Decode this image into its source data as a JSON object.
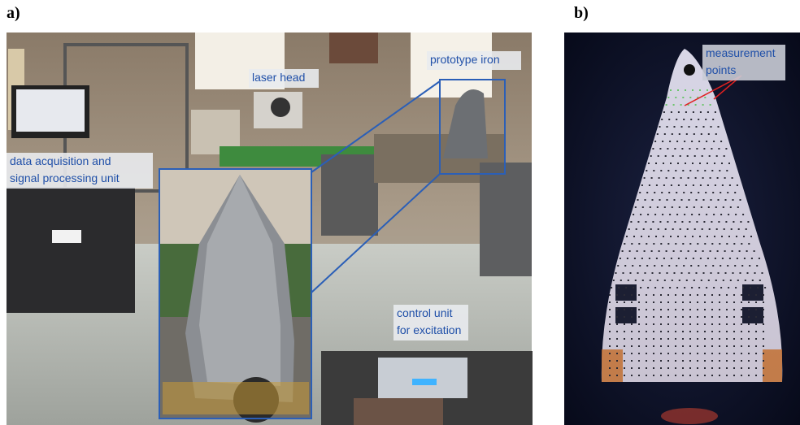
{
  "panels": [
    {
      "label": "a)",
      "annotations": [
        {
          "lines": [
            "laser head"
          ]
        },
        {
          "lines": [
            "prototype iron"
          ]
        },
        {
          "lines": [
            "data acquisition and",
            "signal processing unit"
          ]
        },
        {
          "lines": [
            "control unit",
            "for excitation"
          ]
        }
      ]
    },
    {
      "label": "b)",
      "annotations": [
        {
          "lines": [
            "measurement",
            "points"
          ]
        }
      ]
    }
  ]
}
